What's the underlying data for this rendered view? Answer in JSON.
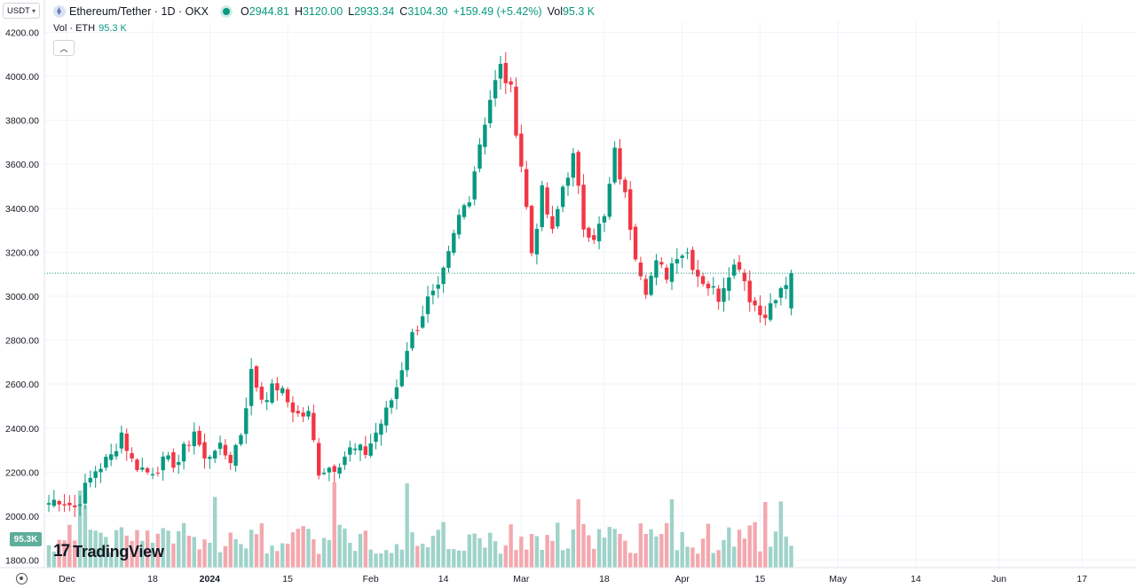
{
  "header": {
    "currency_selector": "USDT",
    "symbol_title": "Ethereum/Tether · 1D · OKX",
    "ohlc": [
      {
        "key": "O",
        "value": "2944.81"
      },
      {
        "key": "H",
        "value": "3120.00"
      },
      {
        "key": "L",
        "value": "2933.34"
      },
      {
        "key": "C",
        "value": "3104.30"
      },
      {
        "key": "",
        "value": "+159.49 (+5.42%)"
      },
      {
        "key": "Vol",
        "value": "95.3 K"
      }
    ],
    "volume_label": "Vol · ETH",
    "volume_value": "95.3 K",
    "collapse_icon": "chevron-up-icon"
  },
  "branding": {
    "name": "TradingView",
    "logo_mark": "17"
  },
  "volume_badge": "95.3K",
  "colors": {
    "up": "#089981",
    "down": "#f23645",
    "up_vol": "#9fd3c9",
    "down_vol": "#f3a8ae",
    "grid": "#f0f3fa",
    "last_price_line": "#089981"
  },
  "chart_data": {
    "type": "candlestick",
    "symbol": "Ethereum/Tether",
    "interval": "1D",
    "exchange": "OKX",
    "y_ticks": [
      4200,
      4000,
      3800,
      3600,
      3400,
      3200,
      3000,
      2800,
      2600,
      2400,
      2200,
      2000,
      1800
    ],
    "ylim": [
      1790,
      4210
    ],
    "x_tick_labels": [
      "Dec",
      "18",
      "2024",
      "15",
      "Feb",
      "14",
      "Mar",
      "18",
      "Apr",
      "15",
      "May",
      "14",
      "Jun",
      "17"
    ],
    "x_tick_index": [
      3.5,
      20,
      31,
      46,
      62,
      76,
      91,
      107,
      122,
      137,
      152,
      167,
      183,
      199
    ],
    "last_price": 3104.3,
    "anchors": [
      [
        0,
        2060
      ],
      [
        2,
        2080
      ],
      [
        5,
        2040
      ],
      [
        9,
        2210
      ],
      [
        12,
        2270
      ],
      [
        14,
        2380
      ],
      [
        16,
        2250
      ],
      [
        19,
        2200
      ],
      [
        22,
        2240
      ],
      [
        25,
        2250
      ],
      [
        28,
        2390
      ],
      [
        30,
        2250
      ],
      [
        32,
        2320
      ],
      [
        35,
        2260
      ],
      [
        37,
        2380
      ],
      [
        39,
        2650
      ],
      [
        41,
        2540
      ],
      [
        44,
        2590
      ],
      [
        46,
        2520
      ],
      [
        48,
        2460
      ],
      [
        50,
        2460
      ],
      [
        52,
        2210
      ],
      [
        55,
        2230
      ],
      [
        58,
        2300
      ],
      [
        61,
        2290
      ],
      [
        63,
        2380
      ],
      [
        65,
        2470
      ],
      [
        67,
        2590
      ],
      [
        69,
        2770
      ],
      [
        71,
        2870
      ],
      [
        73,
        2980
      ],
      [
        75,
        3020
      ],
      [
        77,
        3180
      ],
      [
        79,
        3360
      ],
      [
        81,
        3460
      ],
      [
        83,
        3700
      ],
      [
        85,
        3900
      ],
      [
        87,
        4040
      ],
      [
        89,
        3930
      ],
      [
        91,
        3600
      ],
      [
        93,
        3200
      ],
      [
        95,
        3470
      ],
      [
        97,
        3280
      ],
      [
        99,
        3500
      ],
      [
        101,
        3630
      ],
      [
        103,
        3320
      ],
      [
        105,
        3280
      ],
      [
        107,
        3350
      ],
      [
        109,
        3650
      ],
      [
        111,
        3450
      ],
      [
        113,
        3200
      ],
      [
        115,
        3040
      ],
      [
        117,
        3140
      ],
      [
        119,
        3100
      ],
      [
        121,
        3200
      ],
      [
        123,
        3200
      ],
      [
        125,
        3100
      ],
      [
        127,
        3050
      ],
      [
        129,
        3000
      ],
      [
        131,
        3120
      ],
      [
        133,
        3150
      ],
      [
        135,
        3000
      ],
      [
        137,
        2920
      ],
      [
        139,
        2950
      ],
      [
        141,
        3020
      ],
      [
        143,
        3104.3
      ]
    ],
    "volume_axis_max_k": 600,
    "volume_last_k": 95.3
  }
}
